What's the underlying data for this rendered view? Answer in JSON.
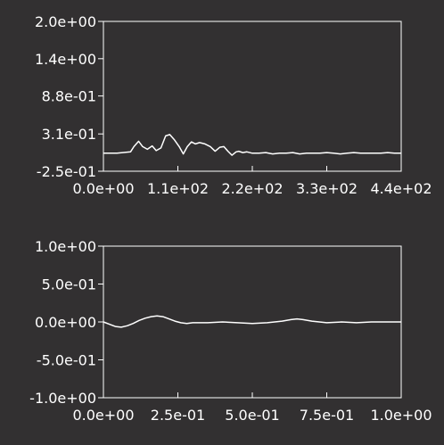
{
  "chart_data": [
    {
      "type": "line",
      "title": "",
      "xlabel": "",
      "ylabel": "",
      "grid": false,
      "xlim": [
        0,
        440
      ],
      "ylim": [
        -0.25,
        2.0
      ],
      "x_ticks": [
        0,
        110,
        220,
        330,
        440
      ],
      "x_tick_labels": [
        "0.0e+00",
        "1.1e+02",
        "2.2e+02",
        "3.3e+02",
        "4.4e+02"
      ],
      "y_ticks": [
        -0.25,
        0.31,
        0.88,
        1.44,
        2.0
      ],
      "y_tick_labels": [
        "-2.5e-01",
        "3.1e-01",
        "8.8e-01",
        "1.4e+00",
        "2.0e+00"
      ],
      "series": [
        {
          "x": [
            0,
            20,
            40,
            45,
            52,
            58,
            65,
            72,
            78,
            85,
            92,
            98,
            105,
            112,
            118,
            124,
            130,
            136,
            142,
            150,
            158,
            165,
            172,
            178,
            184,
            190,
            196,
            200,
            206,
            212,
            220,
            230,
            240,
            250,
            260,
            270,
            280,
            290,
            300,
            310,
            320,
            330,
            340,
            350,
            360,
            370,
            380,
            390,
            400,
            410,
            420,
            430,
            440
          ],
          "y": [
            0.02,
            0.02,
            0.04,
            0.12,
            0.2,
            0.12,
            0.08,
            0.13,
            0.06,
            0.1,
            0.28,
            0.3,
            0.22,
            0.12,
            0.01,
            0.12,
            0.19,
            0.16,
            0.18,
            0.16,
            0.12,
            0.05,
            0.11,
            0.12,
            0.05,
            -0.01,
            0.04,
            0.05,
            0.03,
            0.04,
            0.02,
            0.02,
            0.03,
            0.01,
            0.02,
            0.02,
            0.03,
            0.01,
            0.02,
            0.02,
            0.02,
            0.03,
            0.02,
            0.01,
            0.02,
            0.03,
            0.02,
            0.02,
            0.02,
            0.02,
            0.03,
            0.02,
            0.02
          ]
        }
      ]
    },
    {
      "type": "line",
      "title": "",
      "xlabel": "",
      "ylabel": "",
      "grid": false,
      "xlim": [
        0,
        1.0
      ],
      "ylim": [
        -1.0,
        1.0
      ],
      "x_ticks": [
        0,
        0.25,
        0.5,
        0.75,
        1.0
      ],
      "x_tick_labels": [
        "0.0e+00",
        "2.5e-01",
        "5.0e-01",
        "7.5e-01",
        "1.0e+00"
      ],
      "y_ticks": [
        -1.0,
        -0.5,
        0.0,
        0.5,
        1.0
      ],
      "y_tick_labels": [
        "-1.0e+00",
        "-5.0e-01",
        "0.0e+00",
        "5.0e-01",
        "1.0e+00"
      ],
      "series": [
        {
          "x": [
            0,
            0.02,
            0.04,
            0.06,
            0.08,
            0.1,
            0.12,
            0.14,
            0.16,
            0.18,
            0.2,
            0.22,
            0.24,
            0.26,
            0.28,
            0.3,
            0.35,
            0.4,
            0.45,
            0.5,
            0.55,
            0.6,
            0.63,
            0.65,
            0.67,
            0.7,
            0.75,
            0.8,
            0.85,
            0.9,
            0.95,
            1.0
          ],
          "y": [
            0.0,
            -0.03,
            -0.06,
            -0.07,
            -0.05,
            -0.02,
            0.02,
            0.05,
            0.07,
            0.08,
            0.07,
            0.04,
            0.01,
            -0.01,
            -0.02,
            -0.01,
            -0.01,
            0.0,
            -0.01,
            -0.02,
            -0.01,
            0.01,
            0.03,
            0.04,
            0.03,
            0.01,
            -0.01,
            0.0,
            -0.01,
            0.0,
            0.0,
            0.0
          ]
        }
      ]
    }
  ]
}
